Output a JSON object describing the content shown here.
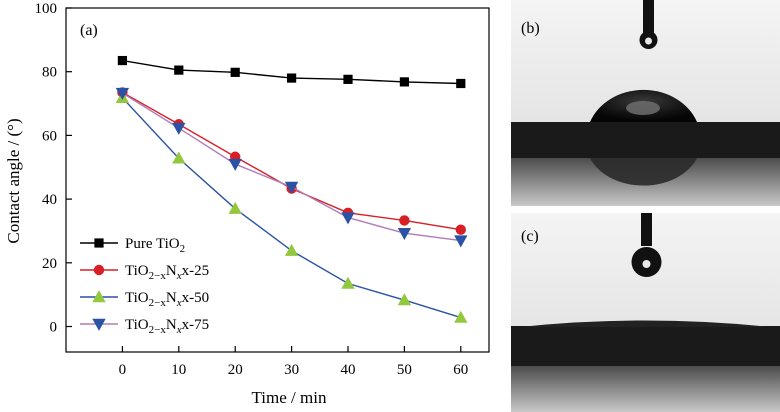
{
  "chart_data": {
    "type": "line",
    "panel_label": "(a)",
    "xlabel": "Time / min",
    "ylabel": "Contact angle / (°)",
    "xlim": [
      -10,
      65
    ],
    "ylim": [
      -8,
      100
    ],
    "xticks": [
      0,
      10,
      20,
      30,
      40,
      50,
      60
    ],
    "yticks": [
      0,
      20,
      40,
      60,
      80,
      100
    ],
    "legend_position": "bottom-left",
    "grid": false,
    "series": [
      {
        "name": "Pure TiO2",
        "x": [
          0,
          10,
          20,
          30,
          40,
          50,
          60
        ],
        "values": [
          83.5,
          80.5,
          79.8,
          78.0,
          77.6,
          76.8,
          76.3
        ],
        "color": "#000000",
        "marker": "square"
      },
      {
        "name": "TiO2−xNx-25",
        "x": [
          0,
          10,
          20,
          30,
          40,
          50,
          60
        ],
        "values": [
          73.5,
          63.5,
          53.3,
          43.3,
          35.7,
          33.3,
          30.4
        ],
        "color": "#d81f26",
        "marker": "circle"
      },
      {
        "name": "TiO2−xNx-50",
        "x": [
          0,
          10,
          20,
          30,
          40,
          50,
          60
        ],
        "values": [
          71.8,
          52.8,
          37.0,
          23.8,
          13.5,
          8.3,
          2.8
        ],
        "color": "#2a52a5",
        "marker_color": "#93c83e",
        "marker": "triangle-up"
      },
      {
        "name": "TiO2−xNx-75",
        "x": [
          0,
          10,
          20,
          30,
          40,
          50,
          60
        ],
        "values": [
          73.3,
          62.3,
          51.0,
          43.8,
          34.2,
          29.3,
          27.0
        ],
        "color": "#b07cb8",
        "marker_color": "#2a52a5",
        "marker": "triangle-down"
      }
    ]
  },
  "photo_panels": [
    {
      "label": "(b)",
      "content": "water droplet with high contact angle"
    },
    {
      "label": "(c)",
      "content": "water droplet spread flat"
    }
  ]
}
